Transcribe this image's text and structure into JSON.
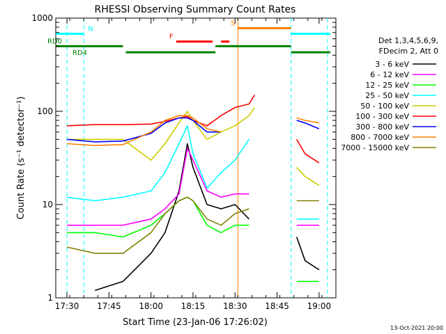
{
  "chart_data": {
    "type": "line",
    "title": "RHESSI Observing Summary Count Rates",
    "xlabel": "Start Time (23-Jan-06 17:26:02)",
    "ylabel": "Count Rate (s⁻¹ detector⁻¹)",
    "x_unit": "minutes",
    "xlim": [
      "17:26",
      "19:06"
    ],
    "ylim": [
      1,
      1000
    ],
    "yscale": "log",
    "x_ticks": [
      "17:30",
      "17:45",
      "18:00",
      "18:15",
      "18:30",
      "18:45",
      "19:00"
    ],
    "y_ticks": [
      "1",
      "10",
      "100",
      "1000"
    ],
    "legend_position": "top-right",
    "legend_header": [
      "Det 1,3,4,5,6,9,",
      "FDecim 2, Att 0"
    ],
    "footer": "13-Oct-2021 20:00",
    "flags": {
      "N": {
        "color": "#00ffff",
        "level": 680,
        "segments": [
          [
            "17:26",
            "17:36"
          ],
          [
            "18:50",
            "19:04"
          ]
        ]
      },
      "RD0": {
        "color": "#008000",
        "level": 500,
        "segments": [
          [
            "17:26",
            "17:50"
          ],
          [
            "18:23",
            "18:50"
          ]
        ]
      },
      "RD4": {
        "color": "#008000",
        "level": 430,
        "segments": [
          [
            "17:26",
            "17:26"
          ],
          [
            "17:51",
            "18:23"
          ],
          [
            "18:50",
            "19:04"
          ]
        ]
      },
      "F": {
        "color": "#ff0000",
        "level": 560,
        "segments": [
          [
            "18:09",
            "18:22"
          ],
          [
            "18:25",
            "18:28"
          ]
        ]
      },
      "S": {
        "color": "#ff8000",
        "level": 780,
        "segments": [
          [
            "18:31",
            "18:50"
          ]
        ]
      }
    },
    "gaps": [
      "17:30",
      "17:36",
      "18:50",
      "19:03"
    ],
    "vertical_markers": [
      {
        "time": "18:31",
        "color": "#ff8000"
      }
    ],
    "series": [
      {
        "name": "3 - 6 keV",
        "color": "#000000",
        "x": [
          "17:26",
          "17:30",
          "17:40",
          "17:50",
          "18:00",
          "18:05",
          "18:10",
          "18:13",
          "18:15",
          "18:20",
          "18:25",
          "18:30",
          "18:35",
          "18:50",
          "18:52",
          "18:55",
          "19:00",
          "19:03",
          "19:06"
        ],
        "y": [
          null,
          null,
          1.2,
          1.5,
          3.0,
          5.0,
          14,
          45,
          25,
          10,
          9,
          10,
          7,
          null,
          4.5,
          2.5,
          2,
          null,
          null
        ]
      },
      {
        "name": "6 - 12 keV",
        "color": "#ff00ff",
        "x": [
          "17:26",
          "17:30",
          "17:40",
          "17:50",
          "18:00",
          "18:05",
          "18:10",
          "18:13",
          "18:15",
          "18:20",
          "18:25",
          "18:30",
          "18:35",
          "18:50",
          "18:52",
          "18:55",
          "19:00",
          "19:03",
          "19:06"
        ],
        "y": [
          null,
          6,
          6,
          6,
          7,
          9,
          13,
          40,
          30,
          14,
          12,
          13,
          13,
          null,
          6,
          6,
          6,
          null,
          null
        ]
      },
      {
        "name": "12 - 25 keV",
        "color": "#00ff00",
        "x": [
          "17:26",
          "17:30",
          "17:40",
          "17:50",
          "18:00",
          "18:05",
          "18:10",
          "18:13",
          "18:15",
          "18:20",
          "18:25",
          "18:30",
          "18:35",
          "18:50",
          "18:52",
          "18:55",
          "19:00",
          "19:03",
          "19:06"
        ],
        "y": [
          null,
          5,
          5,
          4.5,
          6,
          8,
          11,
          12,
          11,
          6,
          5,
          6,
          6,
          null,
          1.5,
          1.5,
          1.5,
          null,
          null
        ]
      },
      {
        "name": "25 - 50 keV",
        "color": "#00ffff",
        "x": [
          "17:26",
          "17:30",
          "17:40",
          "17:50",
          "18:00",
          "18:05",
          "18:10",
          "18:13",
          "18:15",
          "18:20",
          "18:25",
          "18:30",
          "18:35",
          "18:50",
          "18:52",
          "18:55",
          "19:00",
          "19:03",
          "19:06"
        ],
        "y": [
          null,
          12,
          11,
          12,
          14,
          22,
          45,
          70,
          35,
          15,
          22,
          30,
          50,
          null,
          7,
          7,
          7,
          null,
          null
        ]
      },
      {
        "name": "50 - 100 keV",
        "color": "#cccc00",
        "x": [
          "17:26",
          "17:30",
          "17:40",
          "17:50",
          "18:00",
          "18:05",
          "18:10",
          "18:13",
          "18:15",
          "18:20",
          "18:25",
          "18:30",
          "18:35",
          "18:37",
          "18:50",
          "18:52",
          "18:55",
          "19:00",
          "19:03",
          "19:06"
        ],
        "y": [
          null,
          50,
          50,
          50,
          30,
          45,
          75,
          100,
          80,
          50,
          60,
          70,
          90,
          110,
          null,
          25,
          20,
          16,
          null,
          null
        ]
      },
      {
        "name": "100 - 300 keV",
        "color": "#ff0000",
        "x": [
          "17:26",
          "17:30",
          "17:40",
          "17:50",
          "18:00",
          "18:05",
          "18:10",
          "18:13",
          "18:15",
          "18:20",
          "18:25",
          "18:30",
          "18:35",
          "18:37",
          "18:50",
          "18:52",
          "18:55",
          "19:00",
          "19:03",
          "19:06"
        ],
        "y": [
          null,
          70,
          72,
          72,
          73,
          78,
          85,
          88,
          80,
          70,
          90,
          110,
          120,
          150,
          null,
          50,
          35,
          28,
          null,
          null
        ]
      },
      {
        "name": "300 - 800 keV",
        "color": "#0000ff",
        "x": [
          "17:26",
          "17:30",
          "17:40",
          "17:50",
          "18:00",
          "18:05",
          "18:10",
          "18:13",
          "18:15",
          "18:20",
          "18:25",
          "18:30",
          "18:35",
          "18:37",
          "18:50",
          "18:52",
          "18:55",
          "19:00",
          "19:03",
          "19:06"
        ],
        "y": [
          null,
          50,
          47,
          48,
          58,
          75,
          85,
          85,
          80,
          60,
          60,
          null,
          null,
          null,
          null,
          80,
          75,
          65,
          null,
          null
        ]
      },
      {
        "name": "800 - 7000 keV",
        "color": "#ff8000",
        "x": [
          "17:26",
          "17:30",
          "17:40",
          "17:50",
          "18:00",
          "18:05",
          "18:10",
          "18:13",
          "18:15",
          "18:20",
          "18:25",
          "18:30",
          "18:35",
          "18:37",
          "18:50",
          "18:52",
          "18:55",
          "19:00",
          "19:03",
          "19:06"
        ],
        "y": [
          null,
          45,
          43,
          44,
          60,
          80,
          90,
          90,
          85,
          65,
          60,
          null,
          null,
          null,
          null,
          85,
          80,
          75,
          null,
          null
        ]
      },
      {
        "name": "7000 - 15000 keV",
        "color": "#808000",
        "x": [
          "17:26",
          "17:30",
          "17:40",
          "17:50",
          "18:00",
          "18:05",
          "18:10",
          "18:13",
          "18:15",
          "18:20",
          "18:25",
          "18:30",
          "18:35",
          "18:50",
          "18:52",
          "18:55",
          "19:00",
          "19:03",
          "19:06"
        ],
        "y": [
          null,
          3.5,
          3,
          3,
          5,
          8,
          11,
          12,
          11,
          7,
          6,
          8,
          9,
          null,
          11,
          11,
          11,
          null,
          null
        ]
      }
    ]
  }
}
